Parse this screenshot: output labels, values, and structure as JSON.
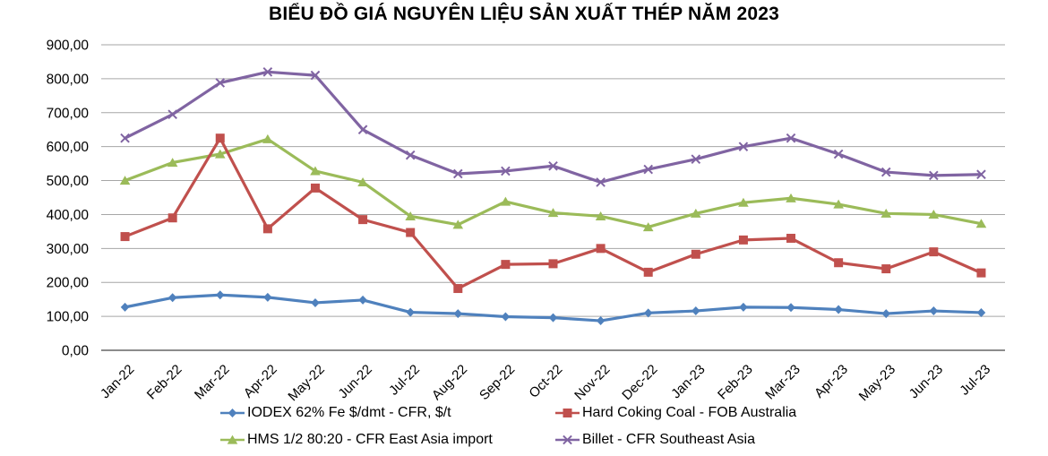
{
  "title": "BIỂU ĐỒ GIÁ NGUYÊN LIỆU SẢN XUẤT THÉP NĂM 2023",
  "chart_data": {
    "type": "line",
    "title": "BIỂU ĐỒ GIÁ NGUYÊN LIỆU SẢN XUẤT THÉP NĂM 2023",
    "categories": [
      "Jan-22",
      "Feb-22",
      "Mar-22",
      "Apr-22",
      "May-22",
      "Jun-22",
      "Jul-22",
      "Aug-22",
      "Sep-22",
      "Oct-22",
      "Nov-22",
      "Dec-22",
      "Jan-23",
      "Feb-23",
      "Mar-23",
      "Apr-23",
      "May-23",
      "Jun-23",
      "Jul-23"
    ],
    "series": [
      {
        "name": "IODEX 62% Fe $/dmt - CFR, $/t",
        "color": "#4F81BD",
        "marker": "diamond",
        "values": [
          127,
          155,
          163,
          156,
          140,
          148,
          112,
          108,
          99,
          96,
          87,
          110,
          116,
          127,
          126,
          120,
          108,
          116,
          111
        ]
      },
      {
        "name": "Hard Coking Coal - FOB Australia",
        "color": "#C0504D",
        "marker": "square",
        "values": [
          335,
          390,
          625,
          358,
          478,
          385,
          347,
          182,
          253,
          255,
          300,
          230,
          283,
          325,
          330,
          258,
          240,
          290,
          228
        ]
      },
      {
        "name": "HMS 1/2 80:20 - CFR East Asia import",
        "color": "#9BBB59",
        "marker": "triangle",
        "values": [
          500,
          553,
          578,
          622,
          528,
          495,
          395,
          370,
          438,
          405,
          395,
          363,
          403,
          435,
          448,
          430,
          403,
          400,
          373
        ]
      },
      {
        "name": "Billet - CFR Southeast Asia",
        "color": "#8064A2",
        "marker": "x",
        "values": [
          625,
          695,
          788,
          820,
          810,
          650,
          575,
          520,
          528,
          543,
          495,
          533,
          563,
          600,
          625,
          578,
          525,
          515,
          518
        ]
      }
    ],
    "xlabel": "",
    "ylabel": "",
    "ylim": [
      0,
      900
    ],
    "ytick_step": 100,
    "ytick_labels": [
      "0,00",
      "100,00",
      "200,00",
      "300,00",
      "400,00",
      "500,00",
      "600,00",
      "700,00",
      "800,00",
      "900,00"
    ],
    "grid": true,
    "legend_position": "bottom",
    "draw_order": [
      2,
      1,
      0,
      3
    ]
  },
  "colors": {
    "background": "#FFFFFF",
    "gridline": "#A6A6A6",
    "axis_line": "#8C8C8C",
    "text": "#000000"
  }
}
